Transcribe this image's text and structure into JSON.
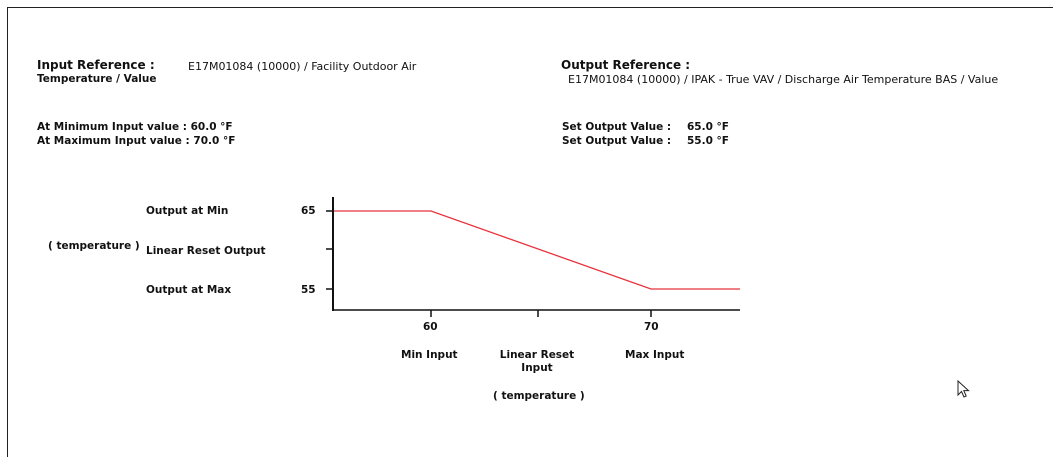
{
  "input_reference": {
    "label": "Input Reference :",
    "value": "E17M01084 (10000) / Facility Outdoor Air",
    "value_cont": "Temperature / Value"
  },
  "output_reference": {
    "label": "Output Reference :",
    "value": "E17M01084 (10000) / IPAK - True VAV / Discharge Air Temperature BAS / Value"
  },
  "limits": {
    "min_input": "At Minimum Input value : 60.0 °F",
    "max_input": "At Maximum Input value : 70.0 °F",
    "set_output_1_label": "Set Output Value :",
    "set_output_1_value": "65.0 °F",
    "set_output_2_label": "Set Output Value :",
    "set_output_2_value": "55.0 °F"
  },
  "graph": {
    "y_row_labels": {
      "output_at_min": "Output at Min",
      "linear_reset_output": "Linear Reset Output",
      "output_at_max": "Output at Max",
      "y_unit": "( temperature )"
    },
    "y_ticks": [
      "65",
      "55"
    ],
    "x_ticks": [
      "60",
      "70"
    ],
    "x_row_labels": {
      "min_input": "Min Input",
      "linear_reset_input_1": "Linear Reset",
      "linear_reset_input_2": "Input",
      "max_input": "Max Input",
      "x_unit": "( temperature )"
    },
    "line_color": "#e8323c"
  },
  "chart_data": {
    "type": "line",
    "x": [
      50,
      60,
      70,
      75
    ],
    "series": [
      {
        "values": [
          65,
          65,
          55,
          55
        ]
      }
    ],
    "xlim": [
      50,
      75
    ],
    "ylim": [
      53,
      67
    ]
  }
}
